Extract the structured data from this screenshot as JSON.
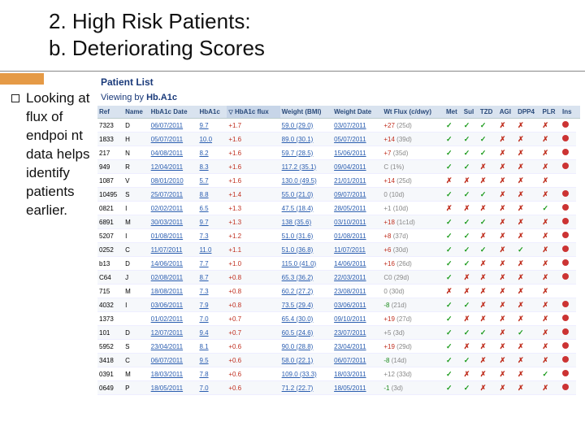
{
  "title_line1": "2. High Risk Patients:",
  "title_line2": "b. Deteriorating Scores",
  "bullet_text": "Looking at flux of endpoi nt data helps identify patients earlier.",
  "panel": {
    "heading": "Patient List",
    "subtitle_prefix": "Viewing by ",
    "subtitle_metric": "Hb.A1c"
  },
  "table": {
    "columns": [
      "Ref",
      "Name",
      "HbA1c Date",
      "HbA1c",
      "HbA1c flux",
      "Weight (BMI)",
      "Weight Date",
      "Wt Flux (c/dwy)",
      "Met",
      "Sul",
      "TZD",
      "AGI",
      "DPP4",
      "PLR",
      "Ins"
    ],
    "sort_col": 4,
    "sort_dir": "▽",
    "rows": [
      {
        "ref": "7323",
        "name": "D",
        "date": "06/07/2011",
        "hba1c": "9.7",
        "flux": "+1.7",
        "wbmi": "59.0 (29.0)",
        "wdate": "03/07/2011",
        "wflux": "+27",
        "wunit": "(25d)",
        "meds": [
          "t",
          "t",
          "t",
          "x",
          "x",
          "x"
        ],
        "dot": true
      },
      {
        "ref": "1833",
        "name": "H",
        "date": "05/07/2011",
        "hba1c": "10.0",
        "flux": "+1.6",
        "wbmi": "89.0 (30.1)",
        "wdate": "05/07/2011",
        "wflux": "+14",
        "wunit": "(39d)",
        "meds": [
          "t",
          "t",
          "t",
          "x",
          "x",
          "x"
        ],
        "dot": true
      },
      {
        "ref": "217",
        "name": "N",
        "date": "04/08/2011",
        "hba1c": "8.2",
        "flux": "+1.6",
        "wbmi": "59.7 (28.5)",
        "wdate": "15/06/2011",
        "wflux": "+7",
        "wunit": "(35d)",
        "meds": [
          "t",
          "t",
          "t",
          "x",
          "x",
          "x"
        ],
        "dot": true
      },
      {
        "ref": "949",
        "name": "R",
        "date": "12/04/2011",
        "hba1c": "8.3",
        "flux": "+1.6",
        "wbmi": "117.2 (35.1)",
        "wdate": "09/04/2011",
        "wflux": "",
        "wunit": "C (1%)",
        "meds": [
          "t",
          "t",
          "x",
          "x",
          "x",
          "x"
        ],
        "dot": true
      },
      {
        "ref": "1087",
        "name": "V",
        "date": "08/01/2010",
        "hba1c": "5.7",
        "flux": "+1.6",
        "wbmi": "130.0 (49.5)",
        "wdate": "21/01/2011",
        "wflux": "+14",
        "wunit": "(25d)",
        "meds": [
          "x",
          "x",
          "x",
          "x",
          "x",
          "x"
        ],
        "dot": false
      },
      {
        "ref": "10495",
        "name": "S",
        "date": "25/07/2011",
        "hba1c": "8.8",
        "flux": "+1.4",
        "wbmi": "55.0 (21.0)",
        "wdate": "09/07/2011",
        "wflux": "",
        "wunit": "0 (10d)",
        "meds": [
          "t",
          "t",
          "t",
          "x",
          "x",
          "x"
        ],
        "dot": true
      },
      {
        "ref": "0821",
        "name": "I",
        "date": "02/02/2011",
        "hba1c": "6.5",
        "flux": "+1.3",
        "wbmi": "47.5 (18.4)",
        "wdate": "28/05/2011",
        "wflux": "",
        "wunit": "+1 (10d)",
        "meds": [
          "x",
          "x",
          "x",
          "x",
          "x",
          "t"
        ],
        "dot": true
      },
      {
        "ref": "6891",
        "name": "M",
        "date": "30/03/2011",
        "hba1c": "9.7",
        "flux": "+1.3",
        "wbmi": "138 (35.6)",
        "wdate": "03/10/2011",
        "wflux": "+18",
        "wunit": "(1c1d)",
        "meds": [
          "t",
          "t",
          "t",
          "x",
          "x",
          "x"
        ],
        "dot": true
      },
      {
        "ref": "5207",
        "name": "I",
        "date": "01/08/2011",
        "hba1c": "7.3",
        "flux": "+1.2",
        "wbmi": "51.0 (31.6)",
        "wdate": "01/08/2011",
        "wflux": "+8",
        "wunit": "(37d)",
        "meds": [
          "t",
          "t",
          "x",
          "x",
          "x",
          "x"
        ],
        "dot": true
      },
      {
        "ref": "0252",
        "name": "C",
        "date": "11/07/2011",
        "hba1c": "11.0",
        "flux": "+1.1",
        "wbmi": "51.0 (36.8)",
        "wdate": "11/07/2011",
        "wflux": "+6",
        "wunit": "(30d)",
        "meds": [
          "t",
          "t",
          "t",
          "x",
          "t",
          "x"
        ],
        "dot": true
      },
      {
        "ref": "b13",
        "name": "D",
        "date": "14/06/2011",
        "hba1c": "7.7",
        "flux": "+1.0",
        "wbmi": "115.0 (41.0)",
        "wdate": "14/06/2011",
        "wflux": "+16",
        "wunit": "(26d)",
        "meds": [
          "t",
          "t",
          "x",
          "x",
          "x",
          "x"
        ],
        "dot": true
      },
      {
        "ref": "C64",
        "name": "J",
        "date": "02/08/2011",
        "hba1c": "8.7",
        "flux": "+0.8",
        "wbmi": "65.3 (36.2)",
        "wdate": "22/03/2011",
        "wflux": "",
        "wunit": "C0 (29d)",
        "meds": [
          "t",
          "x",
          "x",
          "x",
          "x",
          "x"
        ],
        "dot": true
      },
      {
        "ref": "715",
        "name": "M",
        "date": "18/08/2011",
        "hba1c": "7.3",
        "flux": "+0.8",
        "wbmi": "60.2 (27.2)",
        "wdate": "23/08/2011",
        "wflux": "",
        "wunit": "0 (30d)",
        "meds": [
          "x",
          "x",
          "x",
          "x",
          "x",
          "x"
        ],
        "dot": false
      },
      {
        "ref": "4032",
        "name": "I",
        "date": "03/06/2011",
        "hba1c": "7.9",
        "flux": "+0.8",
        "wbmi": "73.5 (29.4)",
        "wdate": "03/06/2011",
        "wflux": "-8",
        "wunit": "(21d)",
        "meds": [
          "t",
          "t",
          "x",
          "x",
          "x",
          "x"
        ],
        "dot": true
      },
      {
        "ref": "1373",
        "name": "",
        "date": "01/02/2011",
        "hba1c": "7.0",
        "flux": "+0.7",
        "wbmi": "65.4 (30.0)",
        "wdate": "09/10/2011",
        "wflux": "+19",
        "wunit": "(27d)",
        "meds": [
          "t",
          "x",
          "x",
          "x",
          "x",
          "x"
        ],
        "dot": true
      },
      {
        "ref": "101",
        "name": "D",
        "date": "12/07/2011",
        "hba1c": "9.4",
        "flux": "+0.7",
        "wbmi": "60.5 (24.6)",
        "wdate": "23/07/2011",
        "wflux": "",
        "wunit": "+5 (3d)",
        "meds": [
          "t",
          "t",
          "t",
          "x",
          "t",
          "x"
        ],
        "dot": true
      },
      {
        "ref": "5952",
        "name": "S",
        "date": "23/04/2011",
        "hba1c": "8.1",
        "flux": "+0.6",
        "wbmi": "90.0 (28.8)",
        "wdate": "23/04/2011",
        "wflux": "+19",
        "wunit": "(29d)",
        "meds": [
          "t",
          "x",
          "x",
          "x",
          "x",
          "x"
        ],
        "dot": true
      },
      {
        "ref": "3418",
        "name": "C",
        "date": "06/07/2011",
        "hba1c": "9.5",
        "flux": "+0.6",
        "wbmi": "58.0 (22.1)",
        "wdate": "06/07/2011",
        "wflux": "-8",
        "wunit": "(14d)",
        "meds": [
          "t",
          "t",
          "x",
          "x",
          "x",
          "x"
        ],
        "dot": true
      },
      {
        "ref": "0391",
        "name": "M",
        "date": "18/03/2011",
        "hba1c": "7.8",
        "flux": "+0.6",
        "wbmi": "109.0 (33.3)",
        "wdate": "18/03/2011",
        "wflux": "",
        "wunit": "+12 (33d)",
        "meds": [
          "t",
          "x",
          "x",
          "x",
          "x",
          "t"
        ],
        "dot": true
      },
      {
        "ref": "0649",
        "name": "P",
        "date": "18/05/2011",
        "hba1c": "7.0",
        "flux": "+0.6",
        "wbmi": "71.2 (22.7)",
        "wdate": "18/05/2011",
        "wflux": "-1",
        "wunit": "(3d)",
        "meds": [
          "t",
          "t",
          "x",
          "x",
          "x",
          "x"
        ],
        "dot": true
      }
    ]
  }
}
